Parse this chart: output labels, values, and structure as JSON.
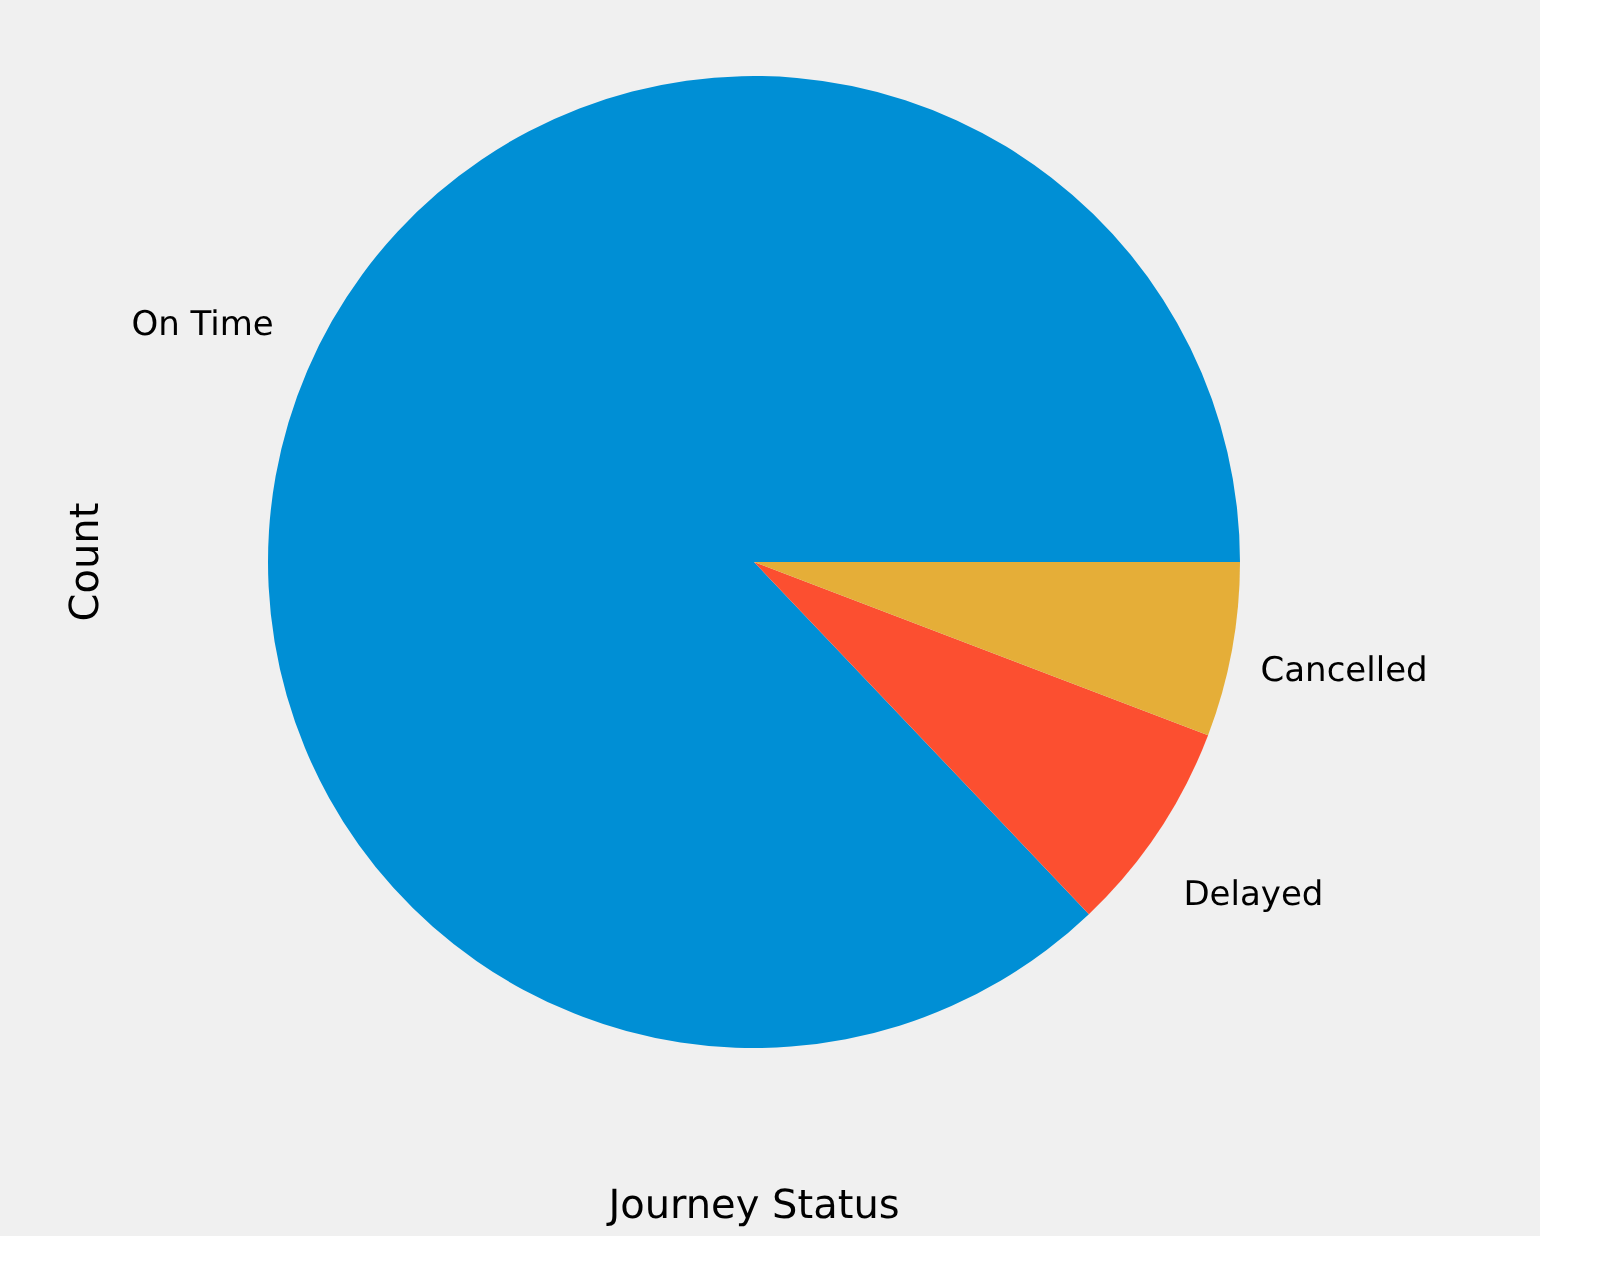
{
  "chart_data": {
    "type": "pie",
    "xlabel": "Journey Status",
    "ylabel": "Count",
    "categories": [
      "On Time",
      "Delayed",
      "Cancelled"
    ],
    "values": [
      87.1,
      7.1,
      5.8
    ],
    "colors": [
      "#008fd5",
      "#fc4f30",
      "#e5ae38"
    ],
    "legend": false
  }
}
